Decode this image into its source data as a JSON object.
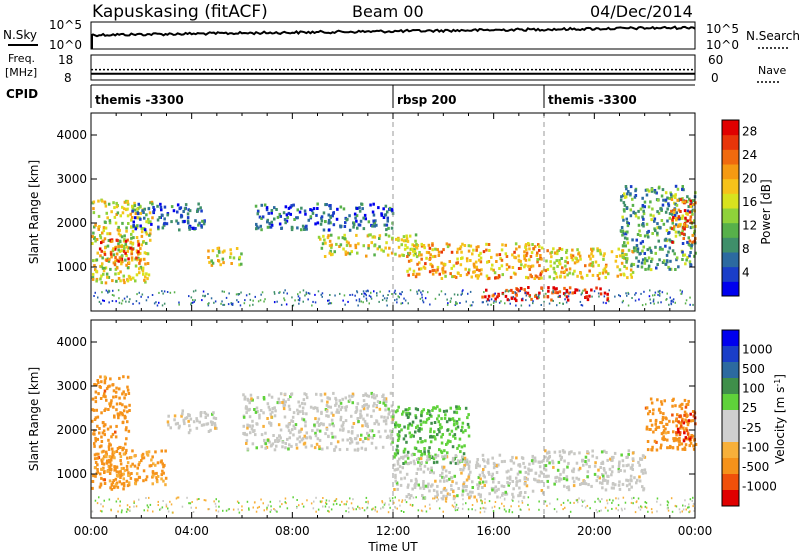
{
  "header": {
    "site": "Kapuskasing (fitACF)",
    "beam": "Beam 00",
    "date": "04/Dec/2014"
  },
  "labels": {
    "nsky": "N.Sky",
    "nsearch": "N.Search",
    "freq": "Freq.",
    "freq_unit": "[MHz]",
    "nave": "Nave",
    "cpid": "CPID",
    "time_axis": "Time UT",
    "slant_range": "Slant Range [km]"
  },
  "noise_panel": {
    "left_ticks": [
      "10^5",
      "10^0"
    ],
    "right_ticks": [
      "10^5",
      "10^0"
    ]
  },
  "freq_panel": {
    "left_ticks": [
      "18",
      "8"
    ],
    "right_ticks": [
      "60",
      "0"
    ],
    "freq_level_mhz": 10.5,
    "nave_level": 25
  },
  "cpid_segments": [
    {
      "start_hr": 0,
      "label": "themis -3300"
    },
    {
      "start_hr": 12,
      "label": "rbsp 200"
    },
    {
      "start_hr": 18,
      "label": "themis -3300"
    }
  ],
  "colors": {
    "power_scale": [
      "#0000ee",
      "#1a3ec8",
      "#2c6aa0",
      "#3f8f6a",
      "#57b04a",
      "#8fd23a",
      "#d8e21e",
      "#f6c21a",
      "#f59a12",
      "#f06a0e",
      "#e8350a",
      "#e00000"
    ],
    "velocity_scale": [
      "#e00000",
      "#f0500a",
      "#f5921a",
      "#f7c23a",
      "#cfcfcf",
      "#cfcfcf",
      "#5fd23a",
      "#3f9f4a",
      "#2c6aa0",
      "#1a3ec8",
      "#0000ee"
    ],
    "gray": "#c8c8c4"
  },
  "chart_data": [
    {
      "type": "heatmap",
      "name": "power",
      "ylabel": "Slant Range [km]",
      "xlabel": "Time UT",
      "x_ticks": [
        "00:00",
        "04:00",
        "08:00",
        "12:00",
        "16:00",
        "20:00",
        "00:00"
      ],
      "xlim_hours": [
        0,
        24
      ],
      "ylim_km": [
        0,
        4500
      ],
      "y_ticks": [
        1000,
        2000,
        3000,
        4000
      ],
      "colorbar": {
        "label": "Power [dB]",
        "ticks": [
          4,
          8,
          12,
          16,
          20,
          24,
          28
        ],
        "range": [
          0,
          30
        ]
      },
      "scatter_regions": [
        {
          "t0": 0.0,
          "t1": 2.4,
          "r0": 600,
          "r1": 2500,
          "value": 16
        },
        {
          "t0": 0.3,
          "t1": 2.0,
          "r0": 1000,
          "r1": 1600,
          "value": 24
        },
        {
          "t0": 1.6,
          "t1": 4.5,
          "r0": 1800,
          "r1": 2400,
          "value": 6
        },
        {
          "t0": 4.6,
          "t1": 6.0,
          "r0": 1000,
          "r1": 1400,
          "value": 16
        },
        {
          "t0": 6.5,
          "t1": 12.0,
          "r0": 1800,
          "r1": 2400,
          "value": 6
        },
        {
          "t0": 9.0,
          "t1": 13.0,
          "r0": 1200,
          "r1": 1700,
          "value": 16
        },
        {
          "t0": 12.5,
          "t1": 18.0,
          "r0": 700,
          "r1": 1500,
          "value": 20
        },
        {
          "t0": 15.5,
          "t1": 20.5,
          "r0": 200,
          "r1": 500,
          "value": 28
        },
        {
          "t0": 18.0,
          "t1": 21.5,
          "r0": 700,
          "r1": 1400,
          "value": 18
        },
        {
          "t0": 21.0,
          "t1": 24.0,
          "r0": 900,
          "r1": 2800,
          "value": 10
        },
        {
          "t0": 23.0,
          "t1": 24.0,
          "r0": 1500,
          "r1": 2500,
          "value": 24
        }
      ]
    },
    {
      "type": "heatmap",
      "name": "velocity",
      "ylabel": "Slant Range [km]",
      "xlabel": "Time UT",
      "x_ticks": [
        "00:00",
        "04:00",
        "08:00",
        "12:00",
        "16:00",
        "20:00",
        "00:00"
      ],
      "xlim_hours": [
        0,
        24
      ],
      "ylim_km": [
        0,
        4500
      ],
      "y_ticks": [
        1000,
        2000,
        3000,
        4000
      ],
      "colorbar": {
        "label": "Velocity [m s^-1]",
        "ticks": [
          "1000",
          "500",
          "100",
          "25",
          "-25",
          "-100",
          "-500",
          "-1000"
        ]
      },
      "scatter_regions": [
        {
          "t0": 0.0,
          "t1": 1.5,
          "r0": 600,
          "r1": 3200,
          "value": -300
        },
        {
          "t0": 0.3,
          "t1": 3.0,
          "r0": 700,
          "r1": 1500,
          "value": -100
        },
        {
          "t0": 3.0,
          "t1": 5.0,
          "r0": 1900,
          "r1": 2400,
          "value": 0
        },
        {
          "t0": 6.0,
          "t1": 12.0,
          "r0": 1500,
          "r1": 2800,
          "value": 0
        },
        {
          "t0": 12.0,
          "t1": 15.0,
          "r0": 1200,
          "r1": 2500,
          "value": 80
        },
        {
          "t0": 12.0,
          "t1": 18.0,
          "r0": 400,
          "r1": 1400,
          "value": 0
        },
        {
          "t0": 18.0,
          "t1": 22.0,
          "r0": 600,
          "r1": 1500,
          "value": 0
        },
        {
          "t0": 22.0,
          "t1": 24.0,
          "r0": 1500,
          "r1": 2700,
          "value": -300
        },
        {
          "t0": 23.2,
          "t1": 24.0,
          "r0": 1700,
          "r1": 2400,
          "value": -800
        }
      ]
    }
  ]
}
